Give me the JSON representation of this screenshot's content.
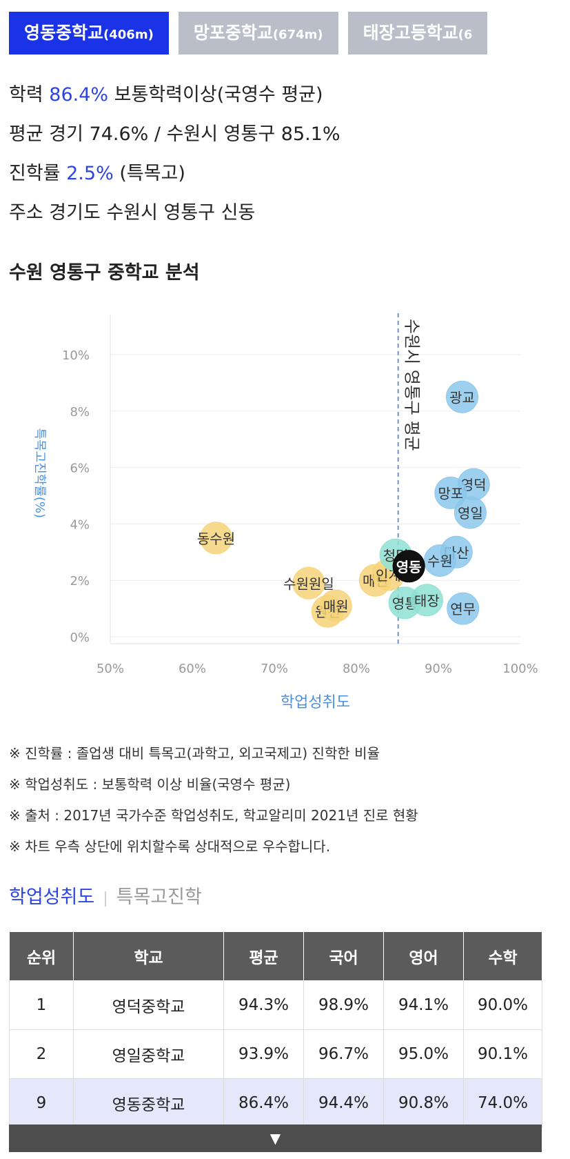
{
  "tabs": [
    {
      "name": "영동중학교",
      "dist": "(406m)",
      "active": true
    },
    {
      "name": "망포중학교",
      "dist": "(674m)",
      "active": false
    },
    {
      "name": "태장고등학교",
      "dist": "(6",
      "active": false
    }
  ],
  "info": {
    "academic_label": "학력",
    "academic_value": "86.4%",
    "academic_desc": "보통학력이상(국영수 평균)",
    "avg_label": "평균",
    "avg_text": "경기 74.6% / 수원시 영통구 85.1%",
    "adv_label": "진학률",
    "adv_value": "2.5%",
    "adv_desc": "(특목고)",
    "addr_label": "주소",
    "addr_text": "경기도 수원시 영통구 신동"
  },
  "section_title": "수원 영통구 중학교 분석",
  "chart_data": {
    "type": "scatter",
    "xlabel": "학업성취도",
    "ylabel": "특목고진학률(%)",
    "xlim": [
      50,
      100
    ],
    "ylim": [
      0,
      10
    ],
    "x_ticks": [
      "50%",
      "60%",
      "70%",
      "80%",
      "90%",
      "100%"
    ],
    "y_ticks": [
      "0%",
      "2%",
      "4%",
      "6%",
      "8%",
      "10%"
    ],
    "reference_line": {
      "x": 85.1,
      "label": "수원시 영통구 평균"
    },
    "colors": {
      "blue": "#8cc8ec",
      "yellow": "#f7d47a",
      "teal": "#8fe0d2",
      "black": "#111111"
    },
    "points": [
      {
        "label": "광교",
        "x": 92.9,
        "y": 8.5,
        "color": "blue"
      },
      {
        "label": "영덕",
        "x": 94.3,
        "y": 5.4,
        "color": "blue"
      },
      {
        "label": "망포",
        "x": 91.5,
        "y": 5.1,
        "color": "blue"
      },
      {
        "label": "영일",
        "x": 93.9,
        "y": 4.4,
        "color": "blue"
      },
      {
        "label": "다산",
        "x": 92.2,
        "y": 3.0,
        "color": "blue"
      },
      {
        "label": "수원",
        "x": 90.2,
        "y": 2.7,
        "color": "blue"
      },
      {
        "label": "연무",
        "x": 93.0,
        "y": 1.0,
        "color": "blue"
      },
      {
        "label": "동수원",
        "x": 62.9,
        "y": 3.5,
        "color": "yellow"
      },
      {
        "label": "수원원일",
        "x": 74.2,
        "y": 1.9,
        "color": "yellow"
      },
      {
        "label": "원천",
        "x": 76.5,
        "y": 0.9,
        "color": "yellow"
      },
      {
        "label": "매원",
        "x": 77.5,
        "y": 1.1,
        "color": "yellow"
      },
      {
        "label": "매현",
        "x": 82.3,
        "y": 2.0,
        "color": "yellow"
      },
      {
        "label": "인계",
        "x": 83.9,
        "y": 2.2,
        "color": "yellow"
      },
      {
        "label": "청명",
        "x": 84.8,
        "y": 2.9,
        "color": "teal"
      },
      {
        "label": "영통",
        "x": 85.9,
        "y": 1.2,
        "color": "teal"
      },
      {
        "label": "태장",
        "x": 88.6,
        "y": 1.3,
        "color": "teal"
      },
      {
        "label": "영동",
        "x": 86.4,
        "y": 2.5,
        "color": "black"
      }
    ]
  },
  "notes": [
    "※ 진학률 : 졸업생 대비 특목고(과학고, 외고국제고) 진학한 비율",
    "※ 학업성취도 : 보통학력 이상 비율(국영수 평균)",
    "※ 출처 : 2017년 국가수준 학업성취도, 학교알리미 2021년 진로 현황",
    "※ 차트 우측 상단에 위치할수록 상대적으로 우수합니다."
  ],
  "sort_tabs": [
    "학업성취도",
    "특목고진학"
  ],
  "table": {
    "headers": [
      "순위",
      "학교",
      "평균",
      "국어",
      "영어",
      "수학"
    ],
    "rows": [
      [
        "1",
        "영덕중학교",
        "94.3%",
        "98.9%",
        "94.1%",
        "90.0%"
      ],
      [
        "2",
        "영일중학교",
        "93.9%",
        "96.7%",
        "95.0%",
        "90.1%"
      ],
      [
        "9",
        "영동중학교",
        "86.4%",
        "94.4%",
        "90.8%",
        "74.0%"
      ]
    ]
  },
  "expand_icon": "▼"
}
